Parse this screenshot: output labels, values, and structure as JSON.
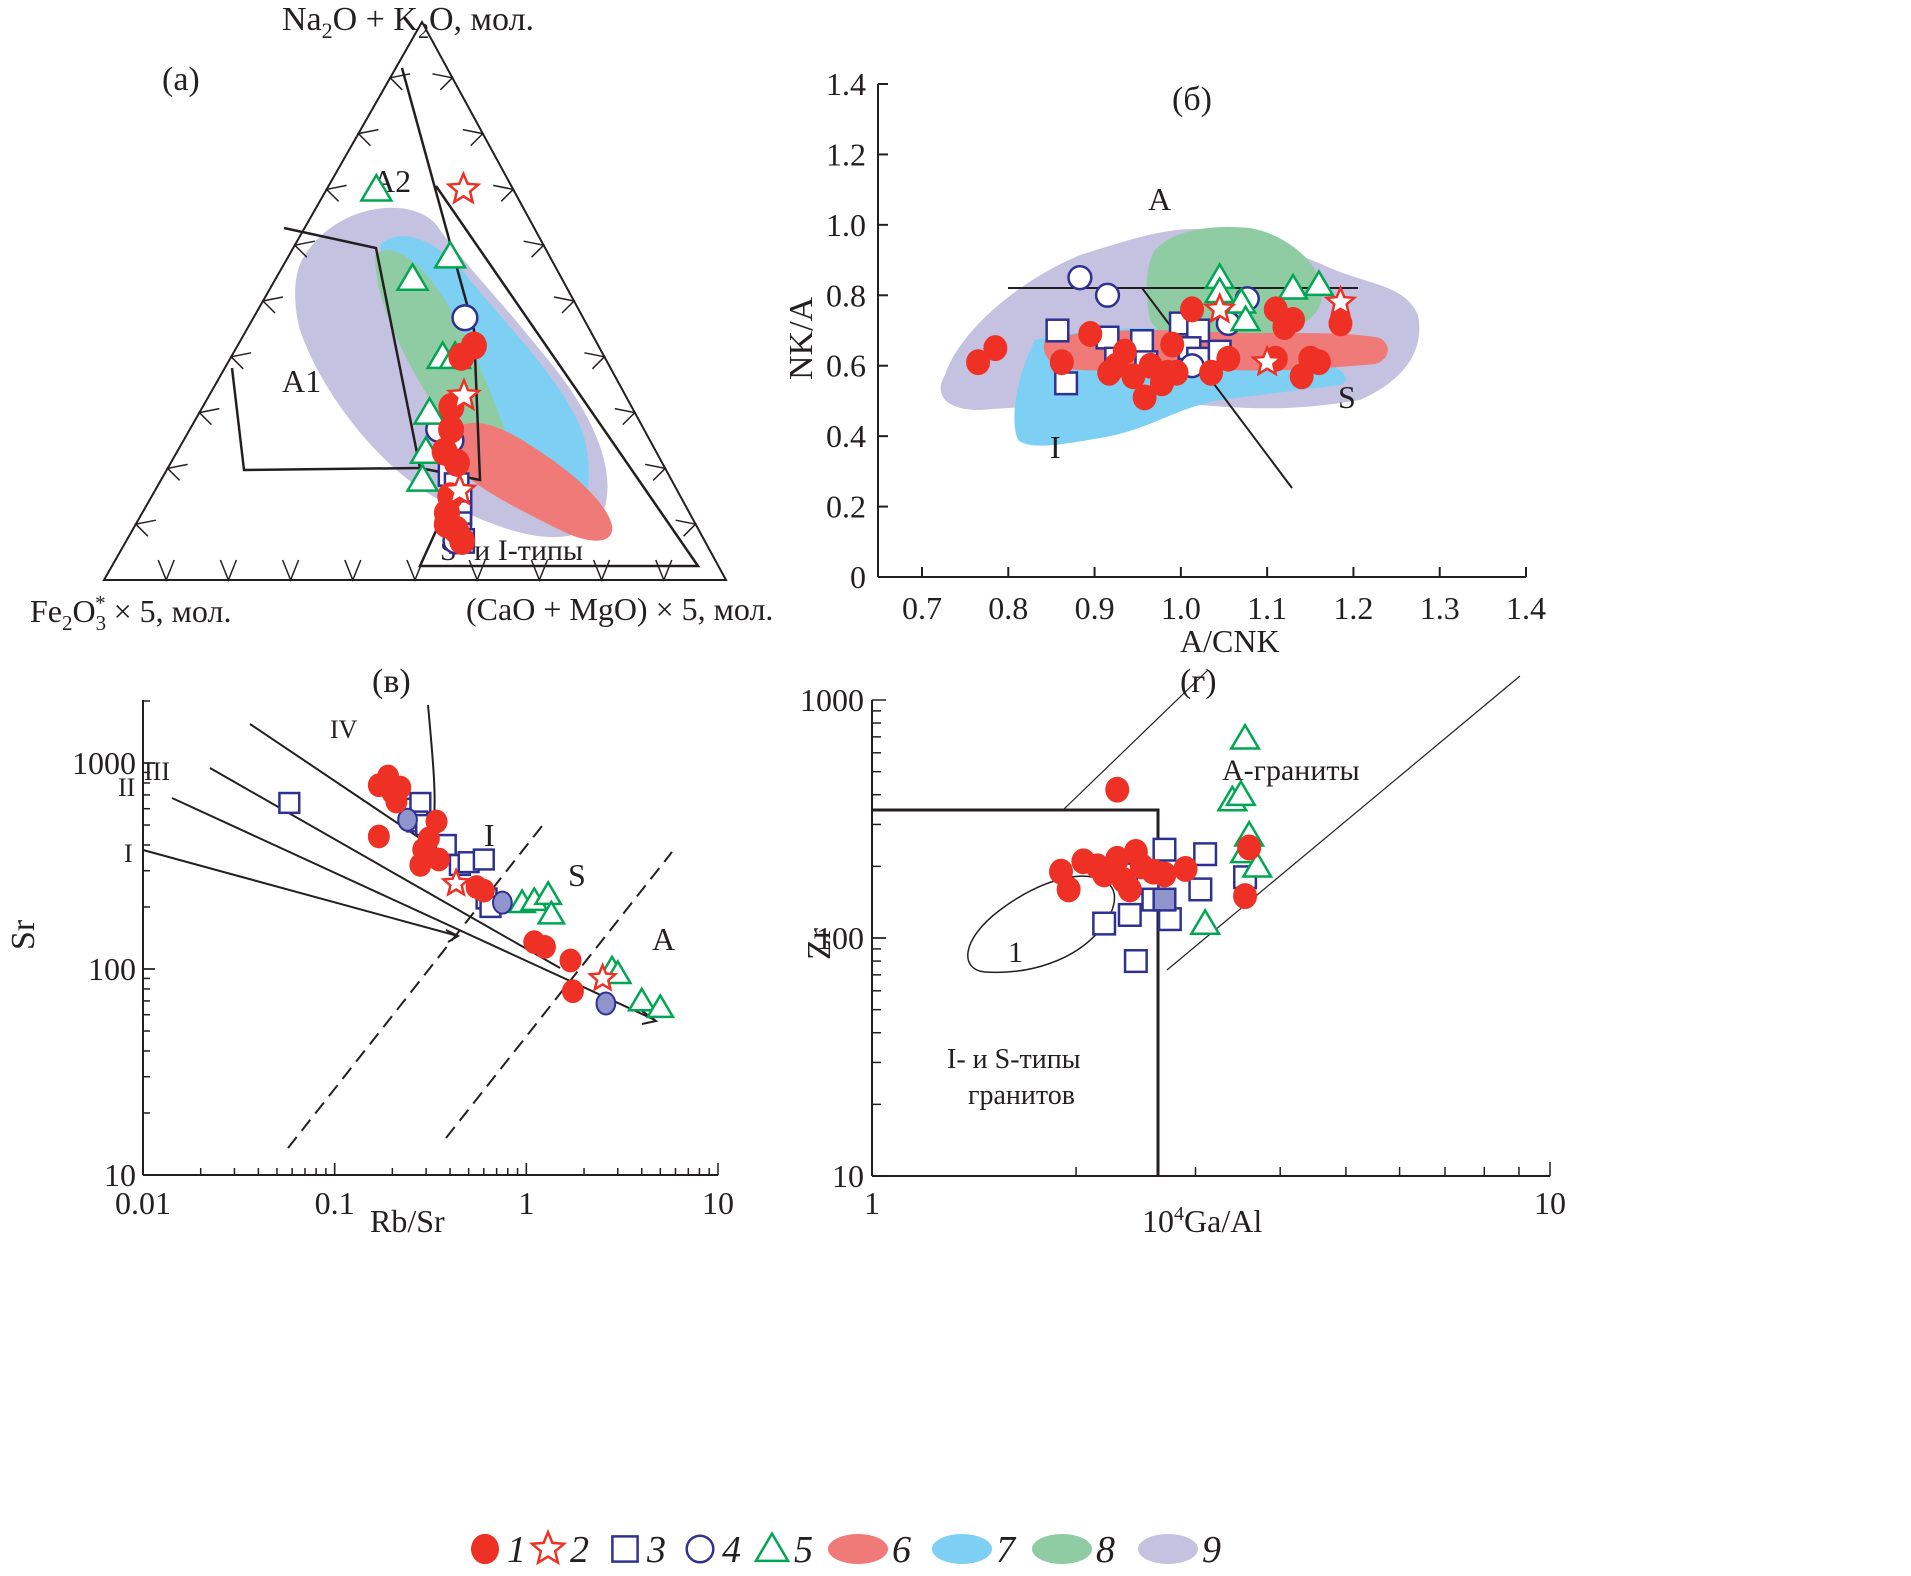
{
  "colors": {
    "red": "#ee3124",
    "blue": "#2e3192",
    "green": "#00a651",
    "field6": "#f07a78",
    "field7": "#7dd0f3",
    "field8": "#8fcca3",
    "field9": "#c4c2e0",
    "filled_blue": "#8f94cc",
    "black": "#231f20"
  },
  "legend": {
    "items": [
      {
        "id": "1",
        "symbol": "filled-circle",
        "label": "1"
      },
      {
        "id": "2",
        "symbol": "star",
        "label": "2"
      },
      {
        "id": "3",
        "symbol": "square",
        "label": "3"
      },
      {
        "id": "4",
        "symbol": "circle",
        "label": "4"
      },
      {
        "id": "5",
        "symbol": "triangle",
        "label": "5"
      },
      {
        "id": "6",
        "symbol": "field-red",
        "label": "6"
      },
      {
        "id": "7",
        "symbol": "field-blue",
        "label": "7"
      },
      {
        "id": "8",
        "symbol": "field-green",
        "label": "8"
      },
      {
        "id": "9",
        "symbol": "field-lilac",
        "label": "9"
      }
    ]
  },
  "chart_data": [
    {
      "panel": "(а)",
      "type": "scatter",
      "subtype": "ternary",
      "apex_labels": {
        "top": "Na₂O + K₂O, мол.",
        "left": "Fe₂O₃* × 5, мол.",
        "right": "(CaO + MgO) × 5, мол."
      },
      "field_labels": [
        "A2",
        "A1",
        "S- и I-типы"
      ],
      "series": [
        {
          "name": "1",
          "symbol": "filled-circle",
          "points": [
            [
              0.38,
              0.42
            ],
            [
              0.37,
              0.4
            ],
            [
              0.4,
              0.31
            ],
            [
              0.42,
              0.27
            ],
            [
              0.43,
              0.23
            ],
            [
              0.46,
              0.21
            ],
            [
              0.48,
              0.15
            ],
            [
              0.49,
              0.12
            ],
            [
              0.5,
              0.1
            ],
            [
              0.52,
              0.09
            ],
            [
              0.54,
              0.07
            ]
          ]
        },
        {
          "name": "2",
          "symbol": "star",
          "points": [
            [
              0.22,
              0.7
            ],
            [
              0.41,
              0.33
            ],
            [
              0.49,
              0.16
            ]
          ]
        },
        {
          "name": "3",
          "symbol": "square",
          "points": [
            [
              0.46,
              0.19
            ],
            [
              0.48,
              0.17
            ],
            [
              0.5,
              0.14
            ],
            [
              0.51,
              0.12
            ],
            [
              0.52,
              0.1
            ],
            [
              0.53,
              0.08
            ],
            [
              0.54,
              0.07
            ]
          ]
        },
        {
          "name": "4",
          "symbol": "circle",
          "points": [
            [
              0.34,
              0.47
            ],
            [
              0.43,
              0.25
            ],
            [
              0.4,
              0.27
            ],
            [
              0.53,
              0.07
            ]
          ]
        },
        {
          "name": "5",
          "symbol": "triangle",
          "points": [
            [
              0.08,
              0.7
            ],
            [
              0.26,
              0.58
            ],
            [
              0.22,
              0.54
            ],
            [
              0.34,
              0.4
            ],
            [
              0.36,
              0.4
            ],
            [
              0.37,
              0.3
            ],
            [
              0.4,
              0.23
            ],
            [
              0.42,
              0.18
            ]
          ]
        }
      ],
      "fields": [
        "6",
        "7",
        "8",
        "9"
      ]
    },
    {
      "panel": "(б)",
      "type": "scatter",
      "xlabel": "A/CNK",
      "ylabel": "NK/A",
      "xlim": [
        0.65,
        1.4
      ],
      "ylim": [
        0,
        1.4
      ],
      "xticks": [
        "0.7",
        "0.8",
        "0.9",
        "1.0",
        "1.1",
        "1.2",
        "1.3",
        "1.4"
      ],
      "yticks": [
        "0",
        "0.2",
        "0.4",
        "0.6",
        "0.8",
        "1.0",
        "1.2",
        "1.4"
      ],
      "field_labels": [
        "A",
        "I",
        "S"
      ],
      "series": [
        {
          "name": "1",
          "symbol": "filled-circle",
          "points": [
            [
              0.765,
              0.61
            ],
            [
              0.785,
              0.65
            ],
            [
              0.862,
              0.61
            ],
            [
              0.895,
              0.69
            ],
            [
              0.917,
              0.58
            ],
            [
              0.925,
              0.6
            ],
            [
              0.935,
              0.64
            ],
            [
              0.945,
              0.57
            ],
            [
              0.958,
              0.51
            ],
            [
              0.965,
              0.6
            ],
            [
              0.978,
              0.55
            ],
            [
              0.985,
              0.58
            ],
            [
              0.99,
              0.66
            ],
            [
              0.995,
              0.58
            ],
            [
              1.013,
              0.76
            ],
            [
              1.035,
              0.58
            ],
            [
              1.055,
              0.62
            ],
            [
              1.11,
              0.62
            ],
            [
              1.11,
              0.76
            ],
            [
              1.12,
              0.71
            ],
            [
              1.13,
              0.73
            ],
            [
              1.14,
              0.57
            ],
            [
              1.15,
              0.62
            ],
            [
              1.16,
              0.61
            ],
            [
              1.185,
              0.72
            ]
          ]
        },
        {
          "name": "2",
          "symbol": "star",
          "points": [
            [
              1.045,
              0.76
            ],
            [
              1.1,
              0.61
            ],
            [
              1.185,
              0.78
            ]
          ]
        },
        {
          "name": "3",
          "symbol": "square",
          "points": [
            [
              0.857,
              0.7
            ],
            [
              0.867,
              0.55
            ],
            [
              0.915,
              0.68
            ],
            [
              0.925,
              0.62
            ],
            [
              0.955,
              0.67
            ],
            [
              0.96,
              0.61
            ],
            [
              1.0,
              0.72
            ],
            [
              1.02,
              0.7
            ],
            [
              1.01,
              0.65
            ],
            [
              1.02,
              0.62
            ],
            [
              1.045,
              0.64
            ]
          ]
        },
        {
          "name": "4",
          "symbol": "circle",
          "points": [
            [
              0.883,
              0.85
            ],
            [
              0.915,
              0.8
            ],
            [
              1.013,
              0.6
            ],
            [
              1.055,
              0.72
            ],
            [
              1.077,
              0.79
            ]
          ]
        },
        {
          "name": "5",
          "symbol": "triangle",
          "points": [
            [
              1.045,
              0.85
            ],
            [
              1.045,
              0.81
            ],
            [
              1.07,
              0.78
            ],
            [
              1.075,
              0.73
            ],
            [
              1.13,
              0.82
            ],
            [
              1.16,
              0.83
            ]
          ]
        }
      ],
      "fields": [
        "6",
        "7",
        "8",
        "9"
      ]
    },
    {
      "panel": "(в)",
      "type": "scatter",
      "xlabel": "Rb/Sr",
      "ylabel": "Sr",
      "xscale": "log",
      "yscale": "log",
      "xlim": [
        0.01,
        10
      ],
      "ylim": [
        10,
        2000
      ],
      "xticks": [
        "0.01",
        "0.1",
        "1",
        "10"
      ],
      "yticks": [
        "10",
        "100",
        "1000"
      ],
      "trend_labels": [
        "I",
        "II",
        "III",
        "IV"
      ],
      "field_labels": [
        "I",
        "S",
        "A"
      ],
      "series": [
        {
          "name": "1",
          "symbol": "filled-circle",
          "points": [
            [
              0.17,
              440
            ],
            [
              0.17,
              780
            ],
            [
              0.19,
              860
            ],
            [
              0.2,
              720
            ],
            [
              0.21,
              650
            ],
            [
              0.22,
              760
            ],
            [
              0.28,
              320
            ],
            [
              0.29,
              380
            ],
            [
              0.31,
              430
            ],
            [
              0.34,
              520
            ],
            [
              0.35,
              340
            ],
            [
              0.55,
              250
            ],
            [
              0.6,
              240
            ],
            [
              1.1,
              135
            ],
            [
              1.25,
              128
            ],
            [
              1.7,
              110
            ],
            [
              1.75,
              78
            ]
          ]
        },
        {
          "name": "2",
          "symbol": "star",
          "points": [
            [
              0.43,
              260
            ],
            [
              2.5,
              90
            ]
          ]
        },
        {
          "name": "3",
          "symbol": "square",
          "points": [
            [
              0.058,
              640
            ],
            [
              0.25,
              600
            ],
            [
              0.28,
              640
            ],
            [
              0.27,
              520
            ],
            [
              0.3,
              500
            ],
            [
              0.38,
              400
            ],
            [
              0.45,
              320
            ],
            [
              0.5,
              330
            ],
            [
              0.6,
              340
            ],
            [
              0.62,
              220
            ],
            [
              0.65,
              200
            ]
          ]
        },
        {
          "name": "3-filled",
          "symbol": "filled-blue-circle",
          "points": [
            [
              0.24,
              530
            ],
            [
              0.75,
              210
            ],
            [
              2.6,
              68
            ]
          ]
        },
        {
          "name": "5",
          "symbol": "triangle",
          "points": [
            [
              0.95,
              210
            ],
            [
              1.1,
              215
            ],
            [
              1.3,
              230
            ],
            [
              1.35,
              185
            ],
            [
              2.8,
              100
            ],
            [
              3.0,
              95
            ],
            [
              4.0,
              70
            ],
            [
              5.0,
              65
            ]
          ]
        }
      ]
    },
    {
      "panel": "(г)",
      "type": "scatter",
      "xlabel": "10⁴Ga/Al",
      "ylabel": "Zr",
      "xscale": "log",
      "yscale": "log",
      "xlim": [
        1,
        10
      ],
      "ylim": [
        10,
        1000
      ],
      "xticks": [
        "1",
        "10"
      ],
      "yticks": [
        "10",
        "100",
        "1000"
      ],
      "field_labels": [
        "A-граниты",
        "I- и S-типы",
        "гранитов",
        "1"
      ],
      "series": [
        {
          "name": "1",
          "symbol": "filled-circle",
          "points": [
            [
              1.9,
              190
            ],
            [
              1.95,
              160
            ],
            [
              2.05,
              210
            ],
            [
              2.15,
              200
            ],
            [
              2.2,
              185
            ],
            [
              2.3,
              215
            ],
            [
              2.35,
              175
            ],
            [
              2.4,
              160
            ],
            [
              2.45,
              230
            ],
            [
              2.5,
              200
            ],
            [
              2.6,
              190
            ],
            [
              2.7,
              185
            ],
            [
              2.9,
              195
            ],
            [
              2.3,
              420
            ],
            [
              3.6,
              240
            ],
            [
              3.55,
              150
            ]
          ]
        },
        {
          "name": "3",
          "symbol": "square",
          "points": [
            [
              2.2,
              115
            ],
            [
              2.4,
              125
            ],
            [
              2.45,
              185
            ],
            [
              2.55,
              170
            ],
            [
              2.6,
              145
            ],
            [
              2.7,
              235
            ],
            [
              2.75,
              120
            ],
            [
              3.1,
              225
            ],
            [
              3.05,
              160
            ],
            [
              3.55,
              180
            ],
            [
              2.45,
              80
            ]
          ]
        },
        {
          "name": "3-filled",
          "symbol": "filled-blue-square",
          "points": [
            [
              2.7,
              145
            ]
          ]
        },
        {
          "name": "5",
          "symbol": "triangle",
          "points": [
            [
              3.4,
              380
            ],
            [
              3.5,
              400
            ],
            [
              3.55,
              690
            ],
            [
              3.6,
              270
            ],
            [
              3.55,
              230
            ],
            [
              3.7,
              200
            ],
            [
              3.1,
              115
            ]
          ]
        }
      ]
    }
  ],
  "panel_labels": {
    "a": "(а)",
    "b": "(б)",
    "v": "(в)",
    "g": "(г)"
  }
}
